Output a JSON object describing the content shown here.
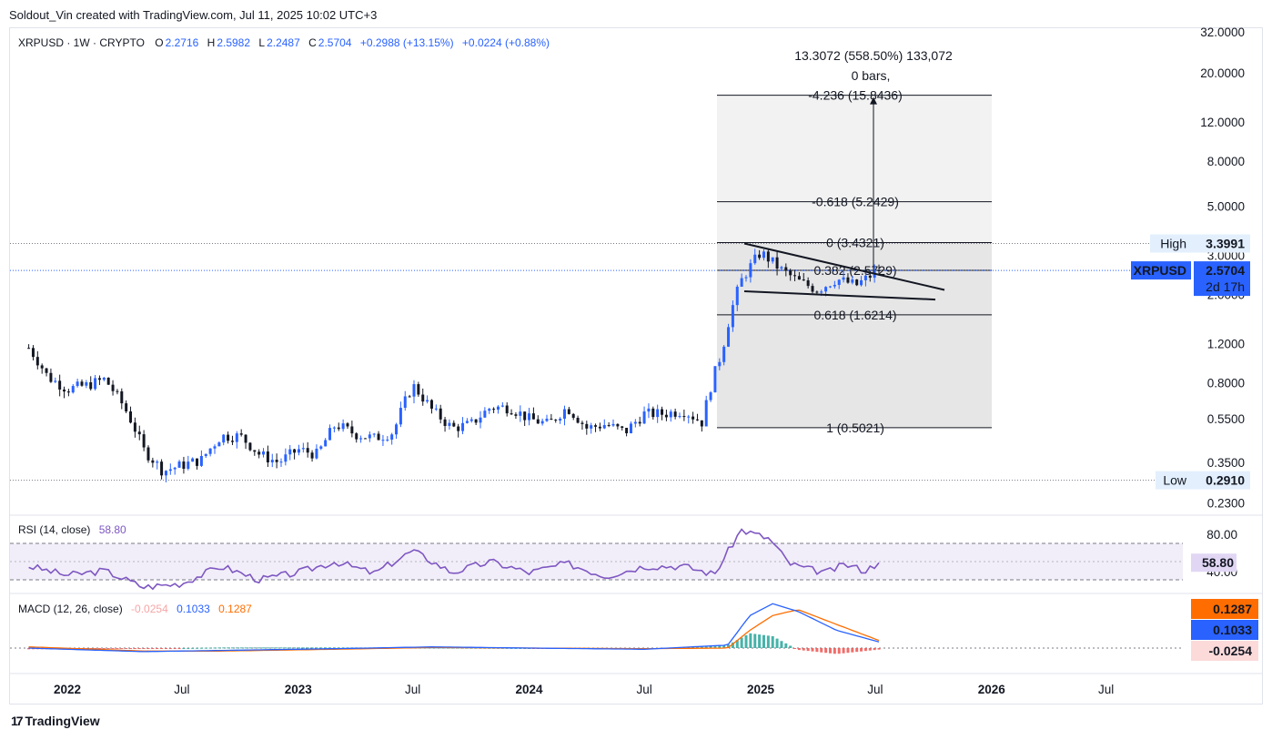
{
  "header": {
    "attribution": "Soldout_Vin created with TradingView.com, Jul 11, 2025 10:02 UTC+3"
  },
  "legend": {
    "symbol": "XRPUSD · 1W · CRYPTO",
    "o_label": "O",
    "o_value": "2.2716",
    "h_label": "H",
    "h_value": "2.5982",
    "l_label": "L",
    "l_value": "2.2487",
    "c_label": "C",
    "c_value": "2.5704",
    "change": "+0.2988 (+13.15%)",
    "change2": "+0.0224 (+0.88%)"
  },
  "measure": {
    "line1": "13.3072 (558.50%) 133,072",
    "line2": "0 bars,"
  },
  "fib_levels": [
    {
      "label": "-4.236 (15.8436)",
      "price": 15.8436
    },
    {
      "label": "-0.618 (5.2429)",
      "price": 5.2429
    },
    {
      "label": "0 (3.4321)",
      "price": 3.4321
    },
    {
      "label": "0.382 (2.5729)",
      "price": 2.5729
    },
    {
      "label": "0.618 (1.6214)",
      "price": 1.6214
    },
    {
      "label": "1 (0.5021)",
      "price": 0.5021
    }
  ],
  "price_badges": {
    "high_label": "High",
    "high_value": "3.3991",
    "symbol_label": "XRPUSD",
    "close_value": "2.5704",
    "countdown": "2d 17h",
    "low_label": "Low",
    "low_value": "0.2910"
  },
  "rsi": {
    "label": "RSI (14, close)",
    "value": "58.80",
    "levels": [
      "80.00",
      "40.00"
    ]
  },
  "macd": {
    "label": "MACD (12, 26, close)",
    "hist": "-0.0254",
    "macd": "0.1033",
    "signal": "0.1287"
  },
  "colors": {
    "up": "#2962ff",
    "down": "#131722",
    "rsi": "#7e57c2",
    "macd": "#2962ff",
    "signal": "#ff6d00",
    "hist_up": "#26a69a",
    "hist_down": "#ef5350"
  },
  "footer": {
    "brand": "TradingView",
    "logo": "tradingview-logo"
  },
  "chart_data": {
    "type": "candlestick",
    "title": "XRPUSD · 1W · CRYPTO",
    "scale": "log",
    "y_ticks": [
      "32.0000",
      "20.0000",
      "12.0000",
      "8.0000",
      "5.0000",
      "3.0000",
      "2.0000",
      "1.2000",
      "0.8000",
      "0.5500",
      "0.3500",
      "0.2300"
    ],
    "y_tick_values": [
      32,
      20,
      12,
      8,
      5,
      3,
      2,
      1.2,
      0.8,
      0.55,
      0.35,
      0.23
    ],
    "x_ticks": [
      {
        "label": "2022",
        "bold": true,
        "date": "2022-01-01"
      },
      {
        "label": "Jul",
        "bold": false,
        "date": "2022-07-01"
      },
      {
        "label": "2023",
        "bold": true,
        "date": "2023-01-01"
      },
      {
        "label": "Jul",
        "bold": false,
        "date": "2023-07-01"
      },
      {
        "label": "2024",
        "bold": true,
        "date": "2024-01-01"
      },
      {
        "label": "Jul",
        "bold": false,
        "date": "2024-07-01"
      },
      {
        "label": "2025",
        "bold": true,
        "date": "2025-01-01"
      },
      {
        "label": "Jul",
        "bold": false,
        "date": "2025-07-01"
      },
      {
        "label": "2026",
        "bold": true,
        "date": "2026-01-01"
      },
      {
        "label": "Jul",
        "bold": false,
        "date": "2026-07-01"
      }
    ],
    "weekly_close_anchors": [
      [
        "2021-11-01",
        1.15
      ],
      [
        "2021-12-01",
        0.85
      ],
      [
        "2022-01-01",
        0.75
      ],
      [
        "2022-02-01",
        0.78
      ],
      [
        "2022-03-01",
        0.83
      ],
      [
        "2022-04-01",
        0.62
      ],
      [
        "2022-05-01",
        0.4
      ],
      [
        "2022-06-01",
        0.32
      ],
      [
        "2022-07-01",
        0.34
      ],
      [
        "2022-08-01",
        0.36
      ],
      [
        "2022-09-01",
        0.46
      ],
      [
        "2022-10-01",
        0.46
      ],
      [
        "2022-11-01",
        0.38
      ],
      [
        "2022-12-01",
        0.35
      ],
      [
        "2023-01-01",
        0.4
      ],
      [
        "2023-02-01",
        0.38
      ],
      [
        "2023-03-01",
        0.52
      ],
      [
        "2023-04-01",
        0.47
      ],
      [
        "2023-05-01",
        0.45
      ],
      [
        "2023-06-01",
        0.48
      ],
      [
        "2023-07-01",
        0.78
      ],
      [
        "2023-08-01",
        0.6
      ],
      [
        "2023-09-01",
        0.5
      ],
      [
        "2023-10-01",
        0.52
      ],
      [
        "2023-11-01",
        0.62
      ],
      [
        "2023-12-01",
        0.62
      ],
      [
        "2024-01-01",
        0.55
      ],
      [
        "2024-02-01",
        0.52
      ],
      [
        "2024-03-01",
        0.62
      ],
      [
        "2024-04-01",
        0.5
      ],
      [
        "2024-05-01",
        0.52
      ],
      [
        "2024-06-01",
        0.48
      ],
      [
        "2024-07-01",
        0.58
      ],
      [
        "2024-08-01",
        0.58
      ],
      [
        "2024-09-01",
        0.6
      ],
      [
        "2024-10-01",
        0.53
      ],
      [
        "2024-11-01",
        1.1
      ],
      [
        "2024-12-01",
        2.3
      ],
      [
        "2025-01-01",
        3.1
      ],
      [
        "2025-02-01",
        2.6
      ],
      [
        "2025-03-01",
        2.3
      ],
      [
        "2025-04-01",
        2.1
      ],
      [
        "2025-05-01",
        2.35
      ],
      [
        "2025-06-01",
        2.2
      ],
      [
        "2025-07-07",
        2.57
      ]
    ],
    "high": 3.3991,
    "low": 0.291,
    "last": 2.5704,
    "rsi_anchors": [
      [
        "2021-11-01",
        55
      ],
      [
        "2022-01-01",
        45
      ],
      [
        "2022-03-01",
        50
      ],
      [
        "2022-05-01",
        32
      ],
      [
        "2022-07-01",
        36
      ],
      [
        "2022-09-01",
        55
      ],
      [
        "2022-11-01",
        40
      ],
      [
        "2023-01-01",
        48
      ],
      [
        "2023-03-01",
        60
      ],
      [
        "2023-05-01",
        47
      ],
      [
        "2023-07-01",
        72
      ],
      [
        "2023-09-01",
        48
      ],
      [
        "2023-11-01",
        60
      ],
      [
        "2024-01-01",
        48
      ],
      [
        "2024-03-01",
        58
      ],
      [
        "2024-05-01",
        44
      ],
      [
        "2024-07-01",
        55
      ],
      [
        "2024-09-01",
        55
      ],
      [
        "2024-10-20",
        46
      ],
      [
        "2024-12-01",
        95
      ],
      [
        "2025-01-15",
        85
      ],
      [
        "2025-02-15",
        58
      ],
      [
        "2025-03-15",
        52
      ],
      [
        "2025-04-15",
        48
      ],
      [
        "2025-05-15",
        57
      ],
      [
        "2025-06-15",
        50
      ],
      [
        "2025-07-07",
        58.8
      ]
    ],
    "macd_anchors": [
      [
        "2021-11-01",
        0.0
      ],
      [
        "2022-05-01",
        -0.06
      ],
      [
        "2022-09-01",
        -0.04
      ],
      [
        "2023-03-01",
        -0.01
      ],
      [
        "2023-08-01",
        0.02
      ],
      [
        "2024-01-01",
        0.0
      ],
      [
        "2024-07-01",
        -0.02
      ],
      [
        "2024-11-10",
        0.05
      ],
      [
        "2024-12-15",
        0.55
      ],
      [
        "2025-01-20",
        0.75
      ],
      [
        "2025-03-01",
        0.62
      ],
      [
        "2025-05-01",
        0.3
      ],
      [
        "2025-07-07",
        0.1033
      ]
    ],
    "signal_anchors": [
      [
        "2021-11-01",
        0.02
      ],
      [
        "2022-05-01",
        -0.05
      ],
      [
        "2022-09-01",
        -0.05
      ],
      [
        "2023-03-01",
        -0.02
      ],
      [
        "2023-08-01",
        0.01
      ],
      [
        "2024-01-01",
        0.0
      ],
      [
        "2024-07-01",
        -0.01
      ],
      [
        "2024-11-10",
        0.0
      ],
      [
        "2024-12-15",
        0.3
      ],
      [
        "2025-01-20",
        0.55
      ],
      [
        "2025-03-01",
        0.65
      ],
      [
        "2025-05-01",
        0.4
      ],
      [
        "2025-07-07",
        0.1287
      ]
    ]
  }
}
